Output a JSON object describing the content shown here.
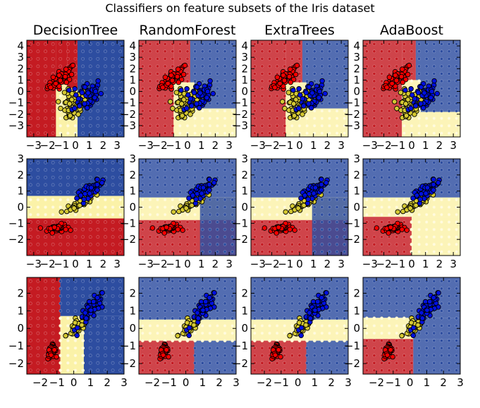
{
  "figure": {
    "title": "Classifiers on feature subsets of the Iris dataset"
  },
  "colors": {
    "red": "#c41b22",
    "yellow": "#fbf2a8",
    "blue": "#2d4da0",
    "pt_red": "#ff0000",
    "pt_yellow": "#d4c832",
    "pt_blue": "#0010e0"
  },
  "chart_data": [
    {
      "type": "scatter",
      "row_role": "row 1 — x range [-3.5, 3.5], y range [-4, 4.5]",
      "xlim": [
        -3.5,
        3.5
      ],
      "ylim": [
        -4,
        4.5
      ],
      "xticks": [
        "−3",
        "−2",
        "−1",
        "0",
        "1",
        "2",
        "3"
      ],
      "yticks": [
        "−3",
        "−2",
        "−1",
        "0",
        "1",
        "2",
        "3",
        "4"
      ],
      "panels": [
        {
          "title": "DecisionTree",
          "regions": [
            {
              "x0": -3.5,
              "x1": -1.4,
              "y0": -4,
              "y1": 4.5,
              "c": "red"
            },
            {
              "x0": -1.4,
              "x1": -0.6,
              "y0": 0.6,
              "y1": 4.5,
              "c": "red"
            },
            {
              "x0": -1.4,
              "x1": -0.6,
              "y0": -4,
              "y1": 0.6,
              "c": "yellow"
            },
            {
              "x0": -0.6,
              "x1": 0.15,
              "y0": -4,
              "y1": 0.3,
              "c": "yellow"
            },
            {
              "x0": -0.6,
              "x1": 0.15,
              "y0": 0.3,
              "y1": 4.5,
              "c": "red"
            },
            {
              "x0": 0.15,
              "x1": 3.5,
              "y0": -4,
              "y1": 4.5,
              "c": "blue"
            }
          ]
        },
        {
          "title": "RandomForest",
          "regions": [
            {
              "x0": -3.5,
              "x1": -1.0,
              "y0": -4,
              "y1": 4.5,
              "c": "red"
            },
            {
              "x0": -1.0,
              "x1": 0.2,
              "y0": 0.8,
              "y1": 4.5,
              "c": "red"
            },
            {
              "x0": -1.0,
              "x1": 0.5,
              "y0": -4,
              "y1": 0.8,
              "c": "yellow"
            },
            {
              "x0": 0.2,
              "x1": 3.5,
              "y0": 0.8,
              "y1": 4.5,
              "c": "blue"
            },
            {
              "x0": 0.5,
              "x1": 3.5,
              "y0": -1.5,
              "y1": 0.8,
              "c": "blue"
            },
            {
              "x0": 0.5,
              "x1": 3.5,
              "y0": -4,
              "y1": -1.5,
              "c": "yellow"
            }
          ]
        },
        {
          "title": "ExtraTrees",
          "regions": [
            {
              "x0": -3.5,
              "x1": -1.0,
              "y0": -4,
              "y1": 4.5,
              "c": "red"
            },
            {
              "x0": -1.0,
              "x1": 0.2,
              "y0": 0.8,
              "y1": 4.5,
              "c": "red"
            },
            {
              "x0": -1.0,
              "x1": 0.5,
              "y0": -4,
              "y1": 0.8,
              "c": "yellow"
            },
            {
              "x0": 0.2,
              "x1": 3.5,
              "y0": 0.8,
              "y1": 4.5,
              "c": "blue"
            },
            {
              "x0": 0.5,
              "x1": 3.5,
              "y0": -1.5,
              "y1": 0.8,
              "c": "blue"
            },
            {
              "x0": 0.5,
              "x1": 3.5,
              "y0": -4,
              "y1": -1.5,
              "c": "yellow"
            }
          ]
        },
        {
          "title": "AdaBoost",
          "regions": [
            {
              "x0": -3.5,
              "x1": -0.7,
              "y0": -4,
              "y1": 4.5,
              "c": "red"
            },
            {
              "x0": -0.7,
              "x1": 0.3,
              "y0": 1.0,
              "y1": 4.5,
              "c": "red"
            },
            {
              "x0": -0.7,
              "x1": 0.6,
              "y0": -4,
              "y1": 1.0,
              "c": "yellow"
            },
            {
              "x0": 0.3,
              "x1": 3.5,
              "y0": 1.0,
              "y1": 4.5,
              "c": "blue"
            },
            {
              "x0": 0.6,
              "x1": 3.5,
              "y0": -1.8,
              "y1": 1.0,
              "c": "blue"
            },
            {
              "x0": 0.6,
              "x1": 3.5,
              "y0": -4,
              "y1": -1.8,
              "c": "yellow"
            }
          ]
        }
      ],
      "clusters": [
        {
          "c": "red",
          "n": 50,
          "cx": -1.0,
          "cy": 1.2,
          "sx": 0.5,
          "sy": 0.5,
          "rho": 0.75
        },
        {
          "c": "yellow",
          "n": 50,
          "cx": -0.2,
          "cy": -1.3,
          "sx": 0.5,
          "sy": 0.7,
          "rho": 0.3
        },
        {
          "c": "blue",
          "n": 50,
          "cx": 0.8,
          "cy": -0.3,
          "sx": 0.55,
          "sy": 0.7,
          "rho": 0.2
        }
      ]
    },
    {
      "type": "scatter",
      "row_role": "row 2 — x range [-3.5, 3.5], y range [-3, 3]",
      "xlim": [
        -3.5,
        3.5
      ],
      "ylim": [
        -3,
        3
      ],
      "xticks": [
        "−3",
        "−2",
        "−1",
        "0",
        "1",
        "2",
        "3"
      ],
      "yticks": [
        "−2",
        "−1",
        "0",
        "1",
        "2",
        "3"
      ],
      "panels": [
        {
          "title": "",
          "regions": [
            {
              "x0": -3.5,
              "x1": 3.5,
              "y0": 0.7,
              "y1": 3,
              "c": "blue"
            },
            {
              "x0": -3.5,
              "x1": 3.5,
              "y0": -0.7,
              "y1": 0.7,
              "c": "yellow"
            },
            {
              "x0": -3.5,
              "x1": 3.5,
              "y0": -3,
              "y1": -0.7,
              "c": "red"
            },
            {
              "x0": -0.4,
              "x1": 0.2,
              "y0": 0.1,
              "y1": 0.7,
              "c": "yellow"
            }
          ]
        },
        {
          "title": "",
          "regions": [
            {
              "x0": -3.5,
              "x1": 3.5,
              "y0": 0.6,
              "y1": 3,
              "c": "blue"
            },
            {
              "x0": -3.5,
              "x1": 3.5,
              "y0": -0.8,
              "y1": 0.6,
              "c": "yellow"
            },
            {
              "x0": -3.5,
              "x1": 3.5,
              "y0": -3,
              "y1": -0.8,
              "c": "red"
            },
            {
              "x0": 0.9,
              "x1": 3.5,
              "y0": -3,
              "y1": 0.6,
              "c": "blue"
            }
          ]
        },
        {
          "title": "",
          "regions": [
            {
              "x0": -3.5,
              "x1": 3.5,
              "y0": 0.6,
              "y1": 3,
              "c": "blue"
            },
            {
              "x0": -3.5,
              "x1": 3.5,
              "y0": -0.8,
              "y1": 0.6,
              "c": "yellow"
            },
            {
              "x0": -3.5,
              "x1": 3.5,
              "y0": -3,
              "y1": -0.8,
              "c": "red"
            },
            {
              "x0": 0.9,
              "x1": 3.5,
              "y0": -3,
              "y1": 0.6,
              "c": "blue"
            }
          ]
        },
        {
          "title": "",
          "regions": [
            {
              "x0": -3.5,
              "x1": 3.5,
              "y0": 0.6,
              "y1": 3,
              "c": "blue"
            },
            {
              "x0": -3.5,
              "x1": 3.5,
              "y0": -0.6,
              "y1": 0.6,
              "c": "yellow"
            },
            {
              "x0": -3.5,
              "x1": 0.0,
              "y0": -3,
              "y1": -0.6,
              "c": "red"
            },
            {
              "x0": 0.0,
              "x1": 3.5,
              "y0": -3,
              "y1": -0.6,
              "c": "yellow"
            }
          ]
        }
      ],
      "clusters": [
        {
          "c": "red",
          "n": 50,
          "cx": -1.3,
          "cy": -1.3,
          "sx": 0.35,
          "sy": 0.12,
          "rho": 0.3
        },
        {
          "c": "yellow",
          "n": 50,
          "cx": 0.3,
          "cy": 0.25,
          "sx": 0.45,
          "sy": 0.25,
          "rho": 0.8
        },
        {
          "c": "blue",
          "n": 50,
          "cx": 1.1,
          "cy": 1.1,
          "sx": 0.5,
          "sy": 0.3,
          "rho": 0.8
        }
      ]
    },
    {
      "type": "scatter",
      "row_role": "row 3 — x range [-2.8, 3], y range [-2.6, 2.9]",
      "xlim": [
        -2.8,
        3.0
      ],
      "ylim": [
        -2.6,
        2.9
      ],
      "xticks": [
        "−2",
        "−1",
        "0",
        "1",
        "2",
        "3"
      ],
      "yticks": [
        "−2",
        "−1",
        "0",
        "1",
        "2"
      ],
      "panels": [
        {
          "title": "",
          "regions": [
            {
              "x0": -2.8,
              "x1": -0.8,
              "y0": -2.6,
              "y1": 2.9,
              "c": "red"
            },
            {
              "x0": -0.8,
              "x1": 3.0,
              "y0": 0.7,
              "y1": 2.9,
              "c": "blue"
            },
            {
              "x0": -0.8,
              "x1": 0.6,
              "y0": -2.6,
              "y1": 0.7,
              "c": "yellow"
            },
            {
              "x0": 0.6,
              "x1": 3.0,
              "y0": -2.6,
              "y1": 0.7,
              "c": "blue"
            }
          ]
        },
        {
          "title": "",
          "regions": [
            {
              "x0": -2.8,
              "x1": 3.0,
              "y0": 0.5,
              "y1": 2.9,
              "c": "blue"
            },
            {
              "x0": -2.8,
              "x1": 3.0,
              "y0": -0.7,
              "y1": 0.5,
              "c": "yellow"
            },
            {
              "x0": -2.8,
              "x1": 0.5,
              "y0": -2.6,
              "y1": -0.7,
              "c": "red"
            },
            {
              "x0": 0.5,
              "x1": 3.0,
              "y0": -2.6,
              "y1": -0.7,
              "c": "blue"
            }
          ]
        },
        {
          "title": "",
          "regions": [
            {
              "x0": -2.8,
              "x1": 3.0,
              "y0": 0.5,
              "y1": 2.9,
              "c": "blue"
            },
            {
              "x0": -2.8,
              "x1": 3.0,
              "y0": -0.7,
              "y1": 0.5,
              "c": "yellow"
            },
            {
              "x0": -2.8,
              "x1": 0.5,
              "y0": -2.6,
              "y1": -0.7,
              "c": "red"
            },
            {
              "x0": 0.5,
              "x1": 3.0,
              "y0": -2.6,
              "y1": -0.7,
              "c": "blue"
            }
          ]
        },
        {
          "title": "",
          "regions": [
            {
              "x0": -2.8,
              "x1": 3.0,
              "y0": 0.6,
              "y1": 2.9,
              "c": "blue"
            },
            {
              "x0": -2.8,
              "x1": 0.2,
              "y0": -0.6,
              "y1": 0.6,
              "c": "yellow"
            },
            {
              "x0": 0.2,
              "x1": 3.0,
              "y0": -0.6,
              "y1": 0.6,
              "c": "blue"
            },
            {
              "x0": -2.8,
              "x1": 0.2,
              "y0": -2.6,
              "y1": -0.6,
              "c": "red"
            },
            {
              "x0": 0.2,
              "x1": 3.0,
              "y0": -2.6,
              "y1": -0.6,
              "c": "blue"
            }
          ]
        }
      ],
      "clusters": [
        {
          "c": "red",
          "n": 50,
          "cx": -1.3,
          "cy": -1.3,
          "sx": 0.12,
          "sy": 0.18,
          "rho": 0.3
        },
        {
          "c": "yellow",
          "n": 50,
          "cx": 0.25,
          "cy": 0.1,
          "sx": 0.35,
          "sy": 0.3,
          "rho": 0.8
        },
        {
          "c": "blue",
          "n": 50,
          "cx": 1.1,
          "cy": 1.1,
          "sx": 0.4,
          "sy": 0.45,
          "rho": 0.8
        }
      ]
    }
  ]
}
